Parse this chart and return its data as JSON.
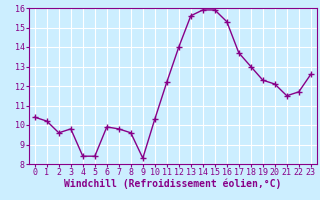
{
  "x": [
    0,
    1,
    2,
    3,
    4,
    5,
    6,
    7,
    8,
    9,
    10,
    11,
    12,
    13,
    14,
    15,
    16,
    17,
    18,
    19,
    20,
    21,
    22,
    23
  ],
  "y": [
    10.4,
    10.2,
    9.6,
    9.8,
    8.4,
    8.4,
    9.9,
    9.8,
    9.6,
    8.3,
    10.3,
    12.2,
    14.0,
    15.6,
    15.9,
    15.9,
    15.3,
    13.7,
    13.0,
    12.3,
    12.1,
    11.5,
    11.7,
    12.6
  ],
  "line_color": "#880088",
  "marker": "+",
  "marker_size": 4,
  "linewidth": 1.0,
  "bg_color": "#cceeff",
  "grid_color": "#ffffff",
  "xlabel": "Windchill (Refroidissement éolien,°C)",
  "xlabel_fontsize": 7,
  "tick_fontsize": 6,
  "ylim": [
    8,
    16
  ],
  "xlim": [
    -0.5,
    23.5
  ],
  "yticks": [
    8,
    9,
    10,
    11,
    12,
    13,
    14,
    15,
    16
  ],
  "xticks": [
    0,
    1,
    2,
    3,
    4,
    5,
    6,
    7,
    8,
    9,
    10,
    11,
    12,
    13,
    14,
    15,
    16,
    17,
    18,
    19,
    20,
    21,
    22,
    23
  ]
}
